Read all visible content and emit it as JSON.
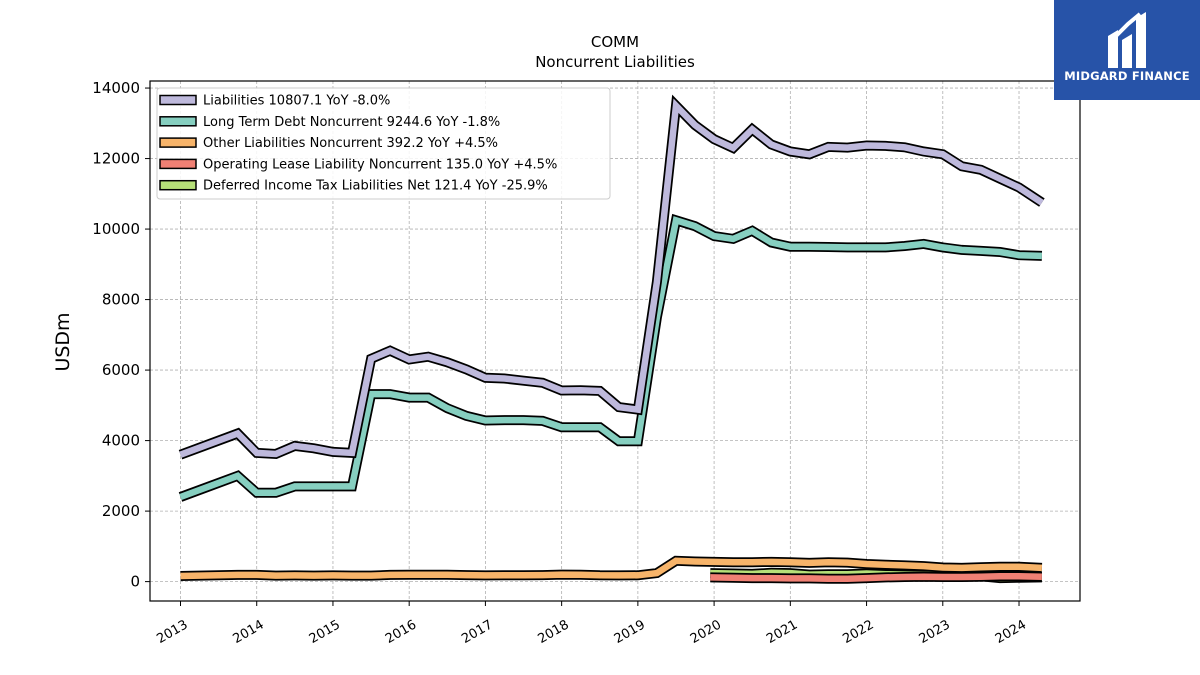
{
  "brand": {
    "name": "MIDGARD FINANCE",
    "color": "#2753a8"
  },
  "chart_data": {
    "type": "line",
    "title": "COMM",
    "subtitle": "Noncurrent  Liabilities",
    "xlabel": "",
    "ylabel": "USDm",
    "xlim": [
      2012.6,
      2024.8
    ],
    "ylim": [
      -550,
      14200
    ],
    "yticks": [
      0,
      2000,
      4000,
      6000,
      8000,
      10000,
      12000,
      14000
    ],
    "xticks": [
      "2013",
      "2014",
      "2015",
      "2016",
      "2017",
      "2018",
      "2019",
      "2020",
      "2021",
      "2022",
      "2023",
      "2024"
    ],
    "grid": true,
    "legend_position": "top-left",
    "series": [
      {
        "name": "Liabilities  10807.1 YoY -8.0%",
        "color": "#beb9dc",
        "points": [
          [
            2013.0,
            3600
          ],
          [
            2013.75,
            4200
          ],
          [
            2014.0,
            3650
          ],
          [
            2014.25,
            3620
          ],
          [
            2014.5,
            3850
          ],
          [
            2014.75,
            3780
          ],
          [
            2015.0,
            3680
          ],
          [
            2015.25,
            3650
          ],
          [
            2015.5,
            6320
          ],
          [
            2015.75,
            6550
          ],
          [
            2016.0,
            6300
          ],
          [
            2016.25,
            6380
          ],
          [
            2016.5,
            6220
          ],
          [
            2016.75,
            6020
          ],
          [
            2017.0,
            5780
          ],
          [
            2017.25,
            5760
          ],
          [
            2017.5,
            5700
          ],
          [
            2017.75,
            5640
          ],
          [
            2018.0,
            5420
          ],
          [
            2018.25,
            5430
          ],
          [
            2018.5,
            5410
          ],
          [
            2018.75,
            4950
          ],
          [
            2019.0,
            4880
          ],
          [
            2019.25,
            8500
          ],
          [
            2019.5,
            13500
          ],
          [
            2019.75,
            12950
          ],
          [
            2020.0,
            12550
          ],
          [
            2020.25,
            12300
          ],
          [
            2020.5,
            12830
          ],
          [
            2020.75,
            12400
          ],
          [
            2021.0,
            12200
          ],
          [
            2021.25,
            12120
          ],
          [
            2021.5,
            12330
          ],
          [
            2021.75,
            12310
          ],
          [
            2022.0,
            12370
          ],
          [
            2022.25,
            12360
          ],
          [
            2022.5,
            12320
          ],
          [
            2022.75,
            12200
          ],
          [
            2023.0,
            12120
          ],
          [
            2023.25,
            11780
          ],
          [
            2023.5,
            11680
          ],
          [
            2023.75,
            11430
          ],
          [
            2024.0,
            11180
          ],
          [
            2024.3,
            10750
          ]
        ]
      },
      {
        "name": "Long Term Debt Noncurrent  9244.6 YoY -1.8%",
        "color": "#86cfc0",
        "points": [
          [
            2013.0,
            2400
          ],
          [
            2013.75,
            3000
          ],
          [
            2014.0,
            2520
          ],
          [
            2014.25,
            2520
          ],
          [
            2014.5,
            2700
          ],
          [
            2014.75,
            2700
          ],
          [
            2015.0,
            2700
          ],
          [
            2015.25,
            2700
          ],
          [
            2015.5,
            5320
          ],
          [
            2015.75,
            5320
          ],
          [
            2016.0,
            5220
          ],
          [
            2016.25,
            5220
          ],
          [
            2016.5,
            4920
          ],
          [
            2016.75,
            4700
          ],
          [
            2017.0,
            4570
          ],
          [
            2017.25,
            4580
          ],
          [
            2017.5,
            4580
          ],
          [
            2017.75,
            4560
          ],
          [
            2018.0,
            4380
          ],
          [
            2018.25,
            4380
          ],
          [
            2018.5,
            4380
          ],
          [
            2018.75,
            3980
          ],
          [
            2019.0,
            3980
          ],
          [
            2019.25,
            7500
          ],
          [
            2019.5,
            10250
          ],
          [
            2019.75,
            10080
          ],
          [
            2020.0,
            9800
          ],
          [
            2020.25,
            9720
          ],
          [
            2020.5,
            9950
          ],
          [
            2020.75,
            9620
          ],
          [
            2021.0,
            9500
          ],
          [
            2021.25,
            9500
          ],
          [
            2021.5,
            9490
          ],
          [
            2021.75,
            9480
          ],
          [
            2022.0,
            9480
          ],
          [
            2022.25,
            9480
          ],
          [
            2022.5,
            9520
          ],
          [
            2022.75,
            9580
          ],
          [
            2023.0,
            9480
          ],
          [
            2023.25,
            9410
          ],
          [
            2023.5,
            9380
          ],
          [
            2023.75,
            9350
          ],
          [
            2024.0,
            9260
          ],
          [
            2024.3,
            9240
          ]
        ]
      },
      {
        "name": "Other Liabilities Noncurrent  392.2 YoY +4.5%",
        "color": "#f7b46a",
        "points": [
          [
            2013.0,
            160
          ],
          [
            2013.75,
            190
          ],
          [
            2014.0,
            190
          ],
          [
            2014.25,
            170
          ],
          [
            2014.5,
            175
          ],
          [
            2014.75,
            170
          ],
          [
            2015.0,
            175
          ],
          [
            2015.25,
            170
          ],
          [
            2015.5,
            170
          ],
          [
            2015.75,
            190
          ],
          [
            2016.0,
            195
          ],
          [
            2016.25,
            195
          ],
          [
            2016.5,
            195
          ],
          [
            2016.75,
            185
          ],
          [
            2017.0,
            175
          ],
          [
            2017.25,
            180
          ],
          [
            2017.5,
            180
          ],
          [
            2017.75,
            185
          ],
          [
            2018.0,
            200
          ],
          [
            2018.25,
            195
          ],
          [
            2018.5,
            180
          ],
          [
            2018.75,
            175
          ],
          [
            2019.0,
            180
          ],
          [
            2019.25,
            240
          ],
          [
            2019.5,
            590
          ],
          [
            2019.75,
            570
          ],
          [
            2020.0,
            560
          ],
          [
            2020.25,
            550
          ],
          [
            2020.5,
            550
          ],
          [
            2020.75,
            560
          ],
          [
            2021.0,
            550
          ],
          [
            2021.25,
            530
          ],
          [
            2021.5,
            550
          ],
          [
            2021.75,
            540
          ],
          [
            2022.0,
            500
          ],
          [
            2022.25,
            480
          ],
          [
            2022.5,
            460
          ],
          [
            2022.75,
            440
          ],
          [
            2023.0,
            400
          ],
          [
            2023.25,
            390
          ],
          [
            2023.5,
            410
          ],
          [
            2023.75,
            420
          ],
          [
            2024.0,
            420
          ],
          [
            2024.3,
            390
          ]
        ]
      },
      {
        "name": "Operating Lease Liability Noncurrent  135.0 YoY +4.5%",
        "color": "#f08074",
        "points": [
          [
            2019.95,
            120
          ],
          [
            2020.25,
            110
          ],
          [
            2020.5,
            100
          ],
          [
            2020.75,
            100
          ],
          [
            2021.0,
            90
          ],
          [
            2021.25,
            90
          ],
          [
            2021.5,
            80
          ],
          [
            2021.75,
            80
          ],
          [
            2022.0,
            100
          ],
          [
            2022.25,
            120
          ],
          [
            2022.5,
            130
          ],
          [
            2022.75,
            140
          ],
          [
            2023.0,
            130
          ],
          [
            2023.25,
            130
          ],
          [
            2023.5,
            140
          ],
          [
            2023.75,
            150
          ],
          [
            2024.0,
            150
          ],
          [
            2024.3,
            140
          ]
        ]
      },
      {
        "name": "Deferred Income Tax Liabilities Net  121.4 YoY -25.9%",
        "color": "#b6e078",
        "points": [
          [
            2019.95,
            240
          ],
          [
            2020.25,
            230
          ],
          [
            2020.5,
            220
          ],
          [
            2020.75,
            250
          ],
          [
            2021.0,
            240
          ],
          [
            2021.25,
            200
          ],
          [
            2021.5,
            210
          ],
          [
            2021.75,
            210
          ],
          [
            2022.0,
            230
          ],
          [
            2022.25,
            210
          ],
          [
            2022.5,
            200
          ],
          [
            2022.75,
            190
          ],
          [
            2023.0,
            180
          ],
          [
            2023.25,
            170
          ],
          [
            2023.5,
            150
          ],
          [
            2023.75,
            100
          ],
          [
            2024.0,
            110
          ],
          [
            2024.3,
            120
          ]
        ]
      }
    ]
  }
}
